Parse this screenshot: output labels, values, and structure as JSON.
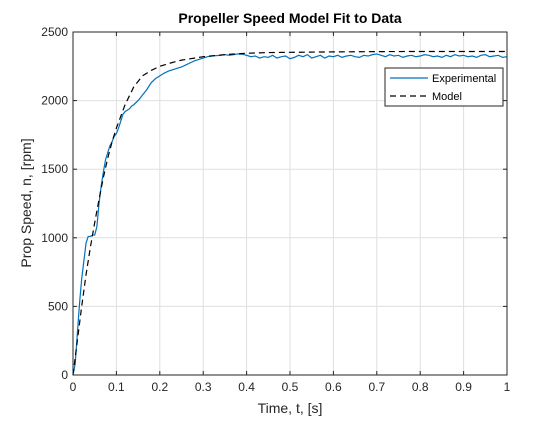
{
  "chart_data": {
    "type": "line",
    "title": "Propeller Speed Model Fit to Data",
    "xlabel": "Time, t, [s]",
    "ylabel": "Prop Speed, n, [rpm]",
    "xlim": [
      0,
      1
    ],
    "ylim": [
      0,
      2500
    ],
    "xticks": [
      0,
      0.1,
      0.2,
      0.3,
      0.4,
      0.5,
      0.6,
      0.7,
      0.8,
      0.9,
      1
    ],
    "xtick_labels": [
      "0",
      "0.1",
      "0.2",
      "0.3",
      "0.4",
      "0.5",
      "0.6",
      "0.7",
      "0.8",
      "0.9",
      "1"
    ],
    "yticks": [
      0,
      500,
      1000,
      1500,
      2000,
      2500
    ],
    "ytick_labels": [
      "0",
      "500",
      "1000",
      "1500",
      "2000",
      "2500"
    ],
    "grid": true,
    "legend_position": "top-right",
    "series": [
      {
        "name": "Experimental",
        "color": "#0072BD",
        "style": "solid",
        "x": [
          0,
          0.005,
          0.01,
          0.015,
          0.02,
          0.025,
          0.03,
          0.035,
          0.04,
          0.045,
          0.05,
          0.055,
          0.06,
          0.065,
          0.07,
          0.075,
          0.08,
          0.085,
          0.09,
          0.095,
          0.1,
          0.105,
          0.11,
          0.115,
          0.12,
          0.125,
          0.13,
          0.135,
          0.14,
          0.15,
          0.16,
          0.17,
          0.18,
          0.19,
          0.2,
          0.21,
          0.22,
          0.23,
          0.24,
          0.25,
          0.26,
          0.27,
          0.28,
          0.29,
          0.3,
          0.31,
          0.32,
          0.33,
          0.34,
          0.35,
          0.36,
          0.37,
          0.38,
          0.39,
          0.4,
          0.41,
          0.42,
          0.43,
          0.44,
          0.45,
          0.46,
          0.47,
          0.48,
          0.49,
          0.5,
          0.51,
          0.52,
          0.53,
          0.54,
          0.55,
          0.56,
          0.57,
          0.58,
          0.59,
          0.6,
          0.61,
          0.62,
          0.63,
          0.64,
          0.65,
          0.66,
          0.67,
          0.68,
          0.69,
          0.7,
          0.71,
          0.72,
          0.73,
          0.74,
          0.75,
          0.76,
          0.77,
          0.78,
          0.79,
          0.8,
          0.81,
          0.82,
          0.83,
          0.84,
          0.85,
          0.86,
          0.87,
          0.88,
          0.89,
          0.9,
          0.91,
          0.92,
          0.93,
          0.94,
          0.95,
          0.96,
          0.97,
          0.98,
          0.99,
          1.0
        ],
        "y": [
          0,
          80,
          300,
          520,
          700,
          830,
          960,
          1010,
          1010,
          1020,
          1020,
          1080,
          1250,
          1380,
          1480,
          1570,
          1620,
          1670,
          1700,
          1740,
          1760,
          1800,
          1850,
          1900,
          1920,
          1930,
          1940,
          1960,
          1970,
          2000,
          2040,
          2080,
          2130,
          2160,
          2180,
          2200,
          2215,
          2225,
          2235,
          2245,
          2260,
          2275,
          2290,
          2300,
          2310,
          2320,
          2325,
          2328,
          2330,
          2335,
          2330,
          2335,
          2340,
          2338,
          2330,
          2320,
          2325,
          2310,
          2320,
          2315,
          2330,
          2310,
          2320,
          2325,
          2305,
          2315,
          2330,
          2320,
          2335,
          2310,
          2320,
          2330,
          2310,
          2325,
          2320,
          2330,
          2315,
          2325,
          2330,
          2320,
          2315,
          2330,
          2325,
          2335,
          2340,
          2330,
          2320,
          2335,
          2325,
          2330,
          2315,
          2325,
          2330,
          2320,
          2325,
          2335,
          2330,
          2320,
          2325,
          2315,
          2330,
          2320,
          2335,
          2325,
          2330,
          2320,
          2325,
          2315,
          2330,
          2335,
          2320,
          2325,
          2330,
          2315,
          2320
        ]
      },
      {
        "name": "Model",
        "color": "#000000",
        "style": "dashed",
        "x": [
          0,
          0.01,
          0.02,
          0.03,
          0.04,
          0.05,
          0.06,
          0.07,
          0.08,
          0.09,
          0.1,
          0.12,
          0.14,
          0.16,
          0.18,
          0.2,
          0.22,
          0.25,
          0.3,
          0.35,
          0.4,
          0.45,
          0.5,
          0.6,
          0.7,
          0.8,
          0.9,
          1.0
        ],
        "y": [
          0,
          250,
          500,
          730,
          930,
          1110,
          1280,
          1440,
          1580,
          1700,
          1800,
          1970,
          2100,
          2180,
          2220,
          2250,
          2270,
          2295,
          2320,
          2335,
          2345,
          2350,
          2352,
          2355,
          2357,
          2358,
          2358,
          2358
        ]
      }
    ]
  }
}
